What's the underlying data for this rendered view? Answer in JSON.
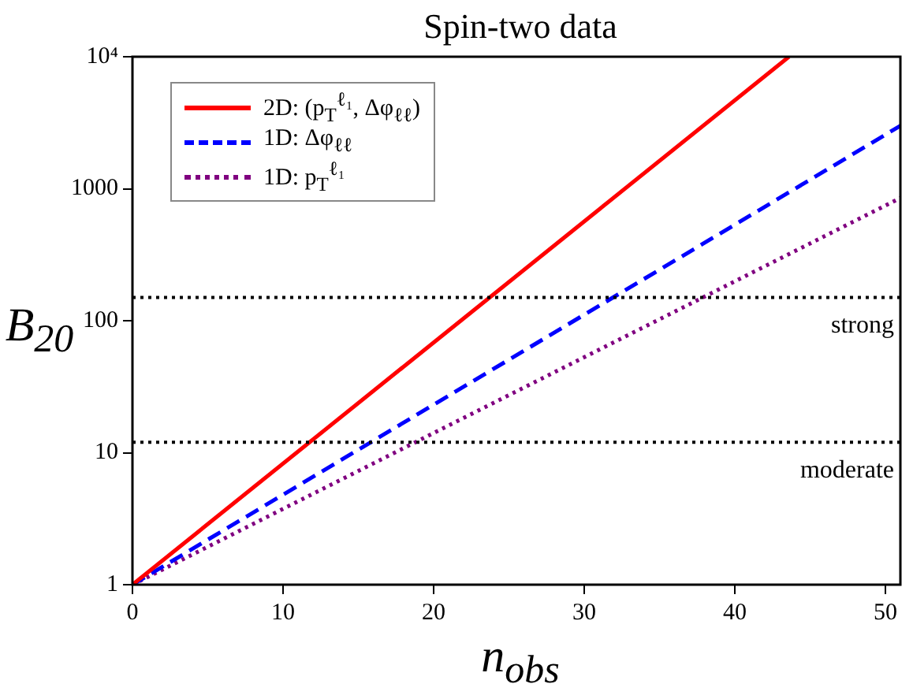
{
  "chart_data": {
    "type": "line",
    "title": "Spin-two data",
    "xlabel": "n$_{obs}$",
    "ylabel": "B$_{20}$",
    "xlim": [
      0,
      51
    ],
    "xticks": [
      0,
      10,
      20,
      30,
      40,
      50
    ],
    "ylim": [
      1,
      10000
    ],
    "yticks": [
      1,
      10,
      100,
      1000,
      {
        "value": 10000,
        "label": "10⁴"
      }
    ],
    "log": "y",
    "grid": false,
    "legend": "top left",
    "marker": "none",
    "series": [
      {
        "name": "2D: (p$_{T}$$^{ℓ₁}$, Δφ$_{ℓℓ}$)",
        "color": "#ff0000",
        "line_style": "solid",
        "x": [
          0,
          43.6
        ],
        "values": [
          1,
          10000
        ]
      },
      {
        "name": "1D: Δφ$_{ℓℓ}$",
        "color": "#0000ff",
        "line_style": "dashed",
        "x": [
          0,
          51
        ],
        "values": [
          1,
          3000
        ]
      },
      {
        "name": "1D: p$_{T}$$^{ℓ₁}$",
        "color": "#800080",
        "line_style": "dotted",
        "x": [
          0,
          51
        ],
        "values": [
          1,
          850
        ]
      }
    ],
    "ref_lines": [
      {
        "axis": "y",
        "value": 150,
        "label": "strong",
        "color": "#000000",
        "line_style": "dotted"
      },
      {
        "axis": "y",
        "value": 12,
        "label": "moderate",
        "color": "#000000",
        "line_style": "dotted"
      }
    ]
  }
}
